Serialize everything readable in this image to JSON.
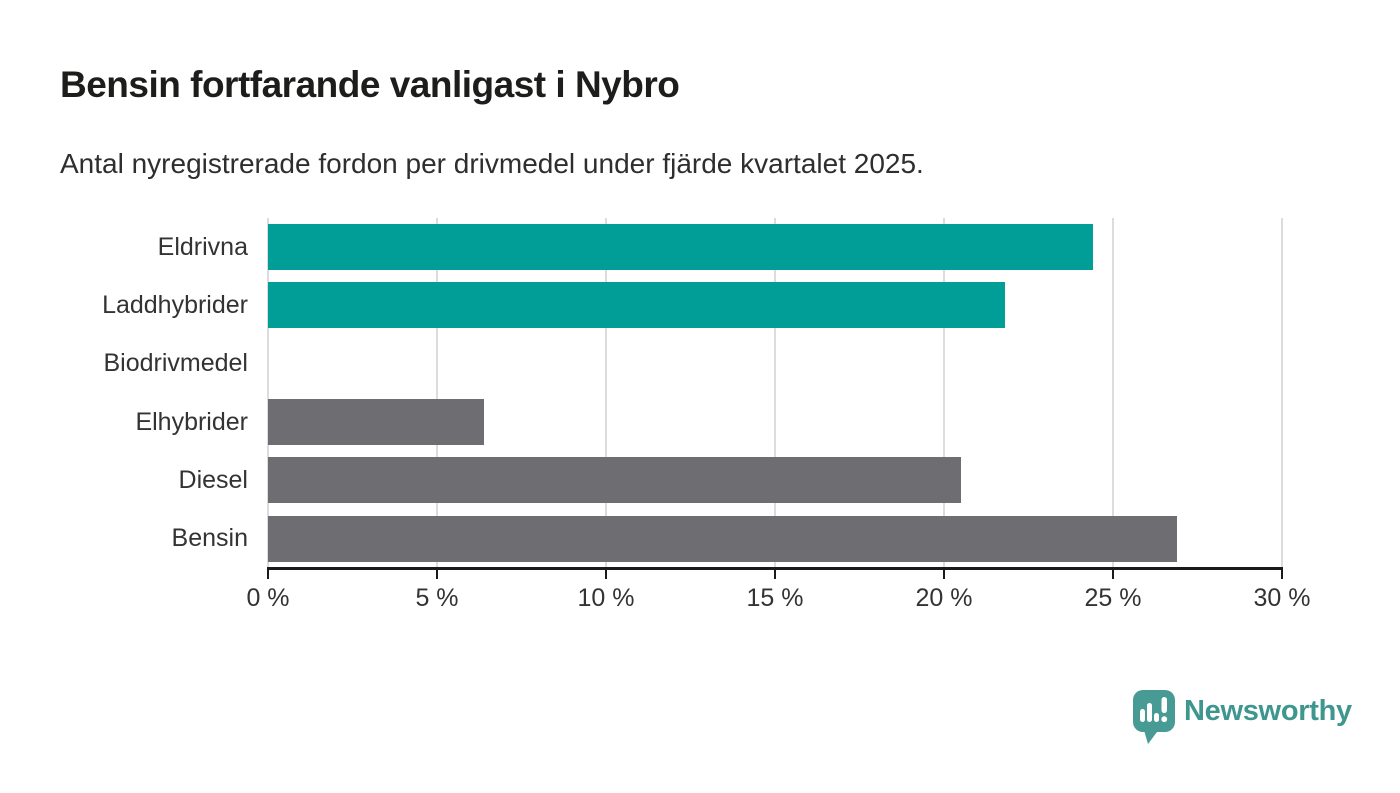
{
  "header": {
    "title": "Bensin fortfarande vanligast i Nybro",
    "subtitle": "Antal nyregistrerade fordon per drivmedel under fjärde kvartalet 2025."
  },
  "chart_data": {
    "type": "bar",
    "orientation": "horizontal",
    "title": "Bensin fortfarande vanligast i Nybro",
    "subtitle": "Antal nyregistrerade fordon per drivmedel under fjärde kvartalet 2025.",
    "categories": [
      "Eldrivna",
      "Laddhybrider",
      "Biodrivmedel",
      "Elhybrider",
      "Diesel",
      "Bensin"
    ],
    "values": [
      24.4,
      21.8,
      0,
      6.4,
      20.5,
      26.9
    ],
    "unit": "%",
    "xlim": [
      0,
      30
    ],
    "x_ticks": [
      0,
      5,
      10,
      15,
      20,
      25,
      30
    ],
    "x_tick_labels": [
      "0 %",
      "5 %",
      "10 %",
      "15 %",
      "20 %",
      "25 %",
      "30 %"
    ],
    "bar_colors": [
      "#009e96",
      "#009e96",
      "#009e96",
      "#6e6e72",
      "#6e6e72",
      "#6e6e72"
    ],
    "grid": true,
    "legend": false
  },
  "colors": {
    "highlight_teal": "#009e96",
    "neutral_gray": "#6e6e72",
    "gridline": "#dcdcdc",
    "axis": "#1a1a1a",
    "logo_teal": "#489b94"
  },
  "branding": {
    "logo_text": "Newsworthy",
    "logo_icon": "bar-chart-speech-bubble-icon"
  }
}
